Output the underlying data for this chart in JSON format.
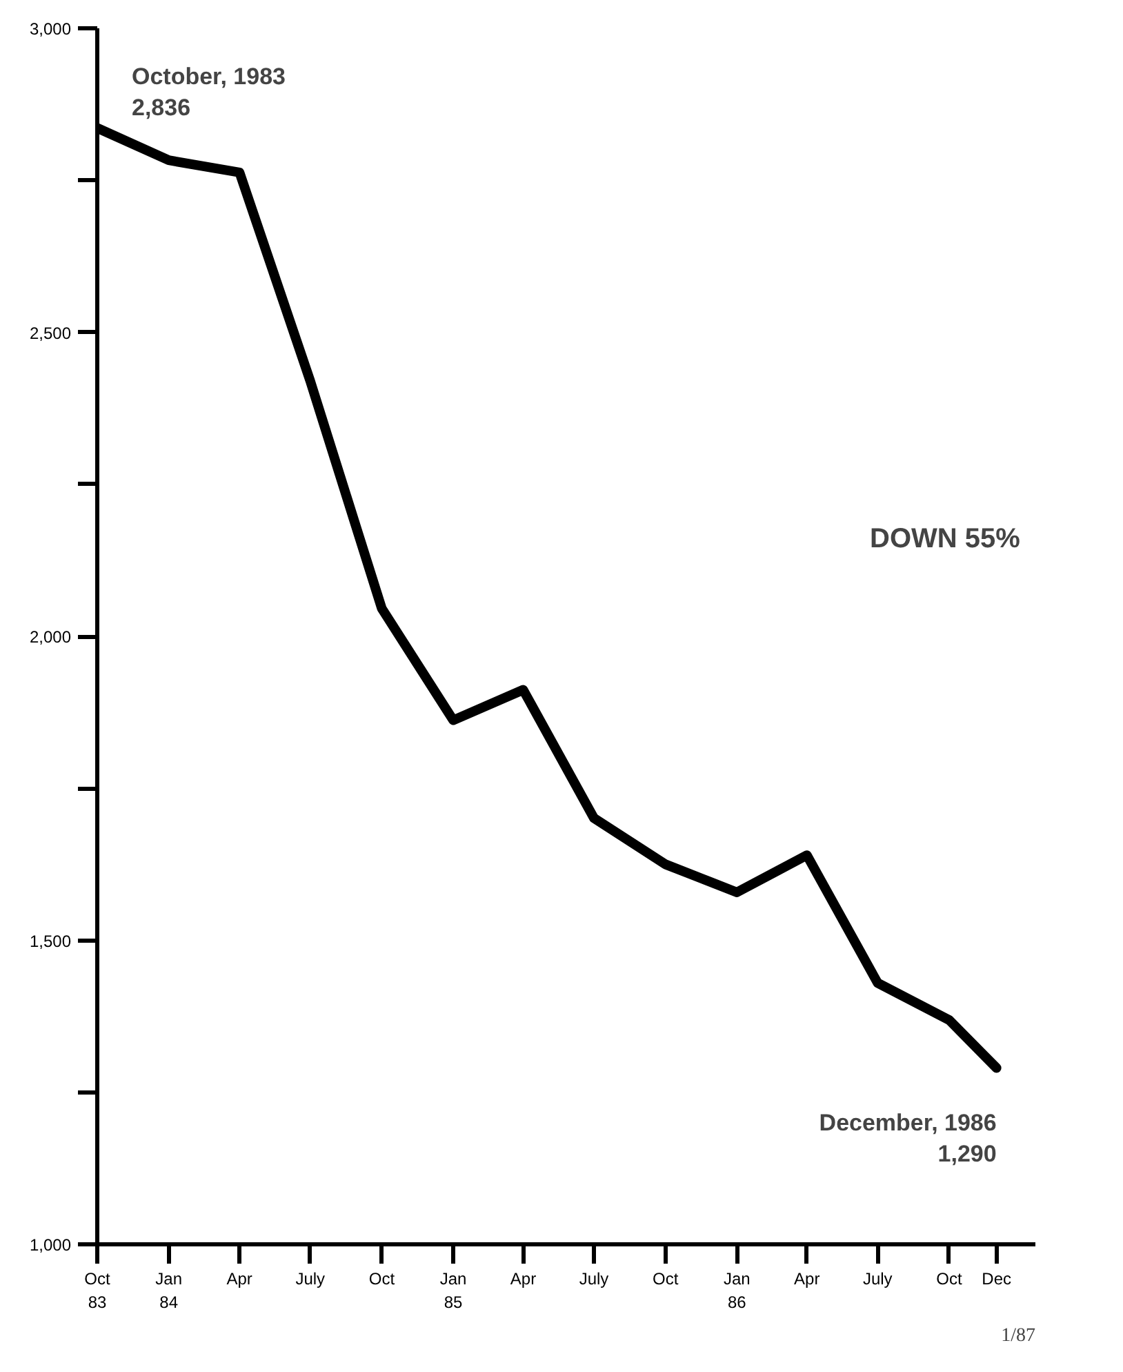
{
  "chart_data": {
    "type": "line",
    "x": [
      "1983-10",
      "1984-01",
      "1984-04",
      "1984-07",
      "1984-10",
      "1985-01",
      "1985-04",
      "1985-07",
      "1985-10",
      "1986-01",
      "1986-04",
      "1986-07",
      "1986-10",
      "1986-12"
    ],
    "values": [
      2836,
      2783,
      2763,
      2420,
      2046,
      1862,
      1912,
      1701,
      1625,
      1579,
      1640,
      1430,
      1369,
      1290
    ],
    "color": "#000000",
    "line_style": "solid",
    "xlim": [
      "1983-10",
      "1987-01-20"
    ],
    "xticks": [
      {
        "value": "1983-10",
        "label": "Oct\n83"
      },
      {
        "value": "1984-01",
        "label": "Jan\n84"
      },
      {
        "value": "1984-04",
        "label": "Apr"
      },
      {
        "value": "1984-07",
        "label": "July"
      },
      {
        "value": "1984-10",
        "label": "Oct"
      },
      {
        "value": "1985-01",
        "label": "Jan\n85"
      },
      {
        "value": "1985-04",
        "label": "Apr"
      },
      {
        "value": "1985-07",
        "label": "July"
      },
      {
        "value": "1985-10",
        "label": "Oct"
      },
      {
        "value": "1986-01",
        "label": "Jan\n86"
      },
      {
        "value": "1986-04",
        "label": "Apr"
      },
      {
        "value": "1986-07",
        "label": "July"
      },
      {
        "value": "1986-10",
        "label": "Oct"
      },
      {
        "value": "1986-12",
        "label": "Dec"
      }
    ],
    "ylim": [
      1000,
      3000
    ],
    "yticks": [
      {
        "value": 1000,
        "label": "1,000"
      },
      {
        "value": 1250,
        "label": null
      },
      {
        "value": 1500,
        "label": "1,500"
      },
      {
        "value": 1750,
        "label": null
      },
      {
        "value": 2000,
        "label": "2,000"
      },
      {
        "value": 2250,
        "label": null
      },
      {
        "value": 2500,
        "label": "2,500"
      },
      {
        "value": 2750,
        "label": null
      },
      {
        "value": 3000,
        "label": "3,000"
      }
    ],
    "grid": false,
    "annotations": [
      {
        "text": "October, 1983\n2,836",
        "x": "1983-10",
        "y": 2836
      },
      {
        "text": "December, 1986\n1,290",
        "x": "1986-12",
        "y": 1290
      },
      "DOWN 55%",
      "1/87"
    ]
  }
}
